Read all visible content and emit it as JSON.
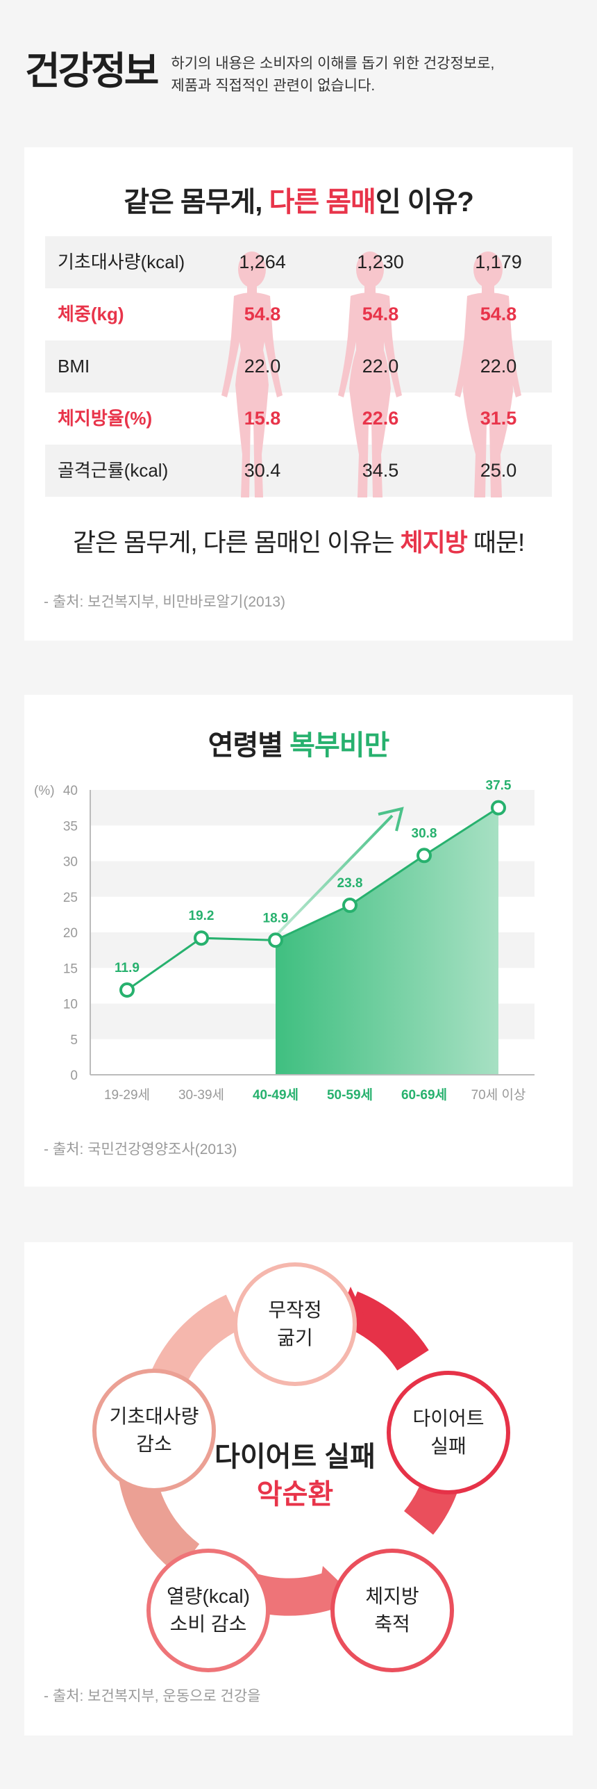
{
  "header": {
    "title": "건강정보",
    "desc_line1": "하기의 내용은 소비자의 이해를 돕기 위한 건강정보로,",
    "desc_line2": "제품과 직접적인 관련이 없습니다."
  },
  "card1": {
    "title_pre": "같은 몸무게, ",
    "title_highlight": "다른 몸매",
    "title_post": "인 이유?",
    "rows": [
      {
        "label": "기초대사량(kcal)",
        "values": [
          "1,264",
          "1,230",
          "1,179"
        ]
      },
      {
        "label": "체중(kg)",
        "values": [
          "54.8",
          "54.8",
          "54.8"
        ]
      },
      {
        "label": "BMI",
        "values": [
          "22.0",
          "22.0",
          "22.0"
        ]
      },
      {
        "label": "체지방율(%)",
        "values": [
          "15.8",
          "22.6",
          "31.5"
        ]
      },
      {
        "label": "골격근률(kcal)",
        "values": [
          "30.4",
          "34.5",
          "25.0"
        ]
      }
    ],
    "conclusion_pre": "같은 몸무게, 다른 몸매인 이유는 ",
    "conclusion_highlight": "체지방",
    "conclusion_post": " 때문!",
    "source": "- 출처: 보건복지부, 비만바로알기(2013)"
  },
  "card2": {
    "title_pre": "연령별 ",
    "title_highlight": "복부비만",
    "source": "- 출처: 국민건강영양조사(2013)"
  },
  "chart_data": {
    "type": "area",
    "title": "연령별 복부비만",
    "ylabel": "(%)",
    "categories": [
      "19-29세",
      "30-39세",
      "40-49세",
      "50-59세",
      "60-69세",
      "70세 이상"
    ],
    "values": [
      11.9,
      19.2,
      18.9,
      23.8,
      30.8,
      37.5
    ],
    "data_labels": [
      "11.9",
      "19.2",
      "18.9",
      "23.8",
      "30.8",
      "37.5"
    ],
    "highlighted_categories": [
      "40-49세",
      "50-59세",
      "60-69세"
    ],
    "ylim": [
      0,
      40
    ],
    "yticks": [
      0,
      5,
      10,
      15,
      20,
      25,
      30,
      35,
      40
    ],
    "ytick_labels": [
      "0",
      "5",
      "10",
      "15",
      "20",
      "25",
      "30",
      "35",
      "40"
    ],
    "grid": "alternating horizontal bands",
    "colors": {
      "line": "#27b16e",
      "fill_start": "#3fbf80",
      "fill_end": "#a7e0c3",
      "label": "#27b16e"
    }
  },
  "card3": {
    "center_line1": "다이어트 실패",
    "center_line2": "악순환",
    "cycle": [
      {
        "line1": "무작정",
        "line2": "굶기"
      },
      {
        "line1": "다이어트",
        "line2": "실패"
      },
      {
        "line1": "체지방",
        "line2": "축적"
      },
      {
        "line1": "열량(kcal)",
        "line2": "소비 감소"
      },
      {
        "line1": "기초대사량",
        "line2": "감소"
      }
    ],
    "source": "- 출처: 보건복지부, 운동으로 건강을"
  },
  "colors": {
    "accent_red": "#e8344a",
    "accent_green": "#27b16e",
    "silhouette": "#f7c6cc",
    "background": "#f5f5f5"
  }
}
